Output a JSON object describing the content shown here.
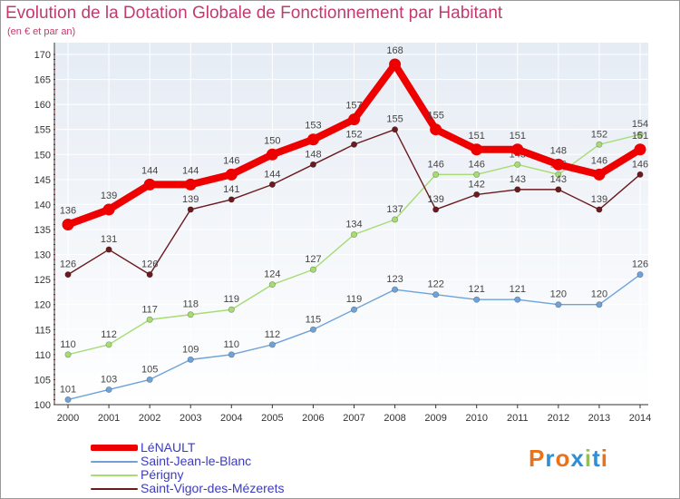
{
  "header": {
    "title": "Evolution de la Dotation Globale de Fonctionnement par Habitant",
    "subtitle": "(en € et par an)"
  },
  "logo": {
    "letters": [
      "P",
      "r",
      "o",
      "x",
      "i",
      "t",
      "i"
    ],
    "colors": [
      "#e8731a",
      "#2f8fd4",
      "#e8731a",
      "#2f8fd4",
      "#8fc63f",
      "#2f8fd4",
      "#e8731a"
    ]
  },
  "chart_data": {
    "type": "line",
    "title": "Evolution de la Dotation Globale de Fonctionnement par Habitant",
    "subtitle": "(en € et par an)",
    "xlabel": "",
    "ylabel": "",
    "ylim": [
      100,
      170
    ],
    "yticks": [
      100,
      105,
      110,
      115,
      120,
      125,
      130,
      135,
      140,
      145,
      150,
      155,
      160,
      165,
      170
    ],
    "grid": true,
    "x": [
      2000,
      2001,
      2002,
      2003,
      2004,
      2005,
      2006,
      2007,
      2008,
      2009,
      2010,
      2011,
      2012,
      2013,
      2014
    ],
    "series": [
      {
        "name": "LéNAULT",
        "color": "#ee0000",
        "values": [
          136,
          139,
          144,
          144,
          146,
          150,
          153,
          157,
          168,
          155,
          151,
          151,
          148,
          146,
          151
        ]
      },
      {
        "name": "Saint-Jean-le-Blanc",
        "color": "#6fa3d8",
        "values": [
          101,
          103,
          105,
          109,
          110,
          112,
          115,
          119,
          123,
          122,
          121,
          121,
          120,
          120,
          126
        ]
      },
      {
        "name": "Périgny",
        "color": "#a6dc72",
        "values": [
          110,
          112,
          117,
          118,
          119,
          124,
          127,
          134,
          137,
          146,
          146,
          148,
          146,
          152,
          154
        ]
      },
      {
        "name": "Saint-Vigor-des-Mézerets",
        "color": "#6b1a1e",
        "values": [
          126,
          131,
          126,
          139,
          141,
          144,
          148,
          152,
          155,
          139,
          142,
          143,
          143,
          139,
          146
        ]
      }
    ],
    "legend_position": "bottom-left"
  }
}
